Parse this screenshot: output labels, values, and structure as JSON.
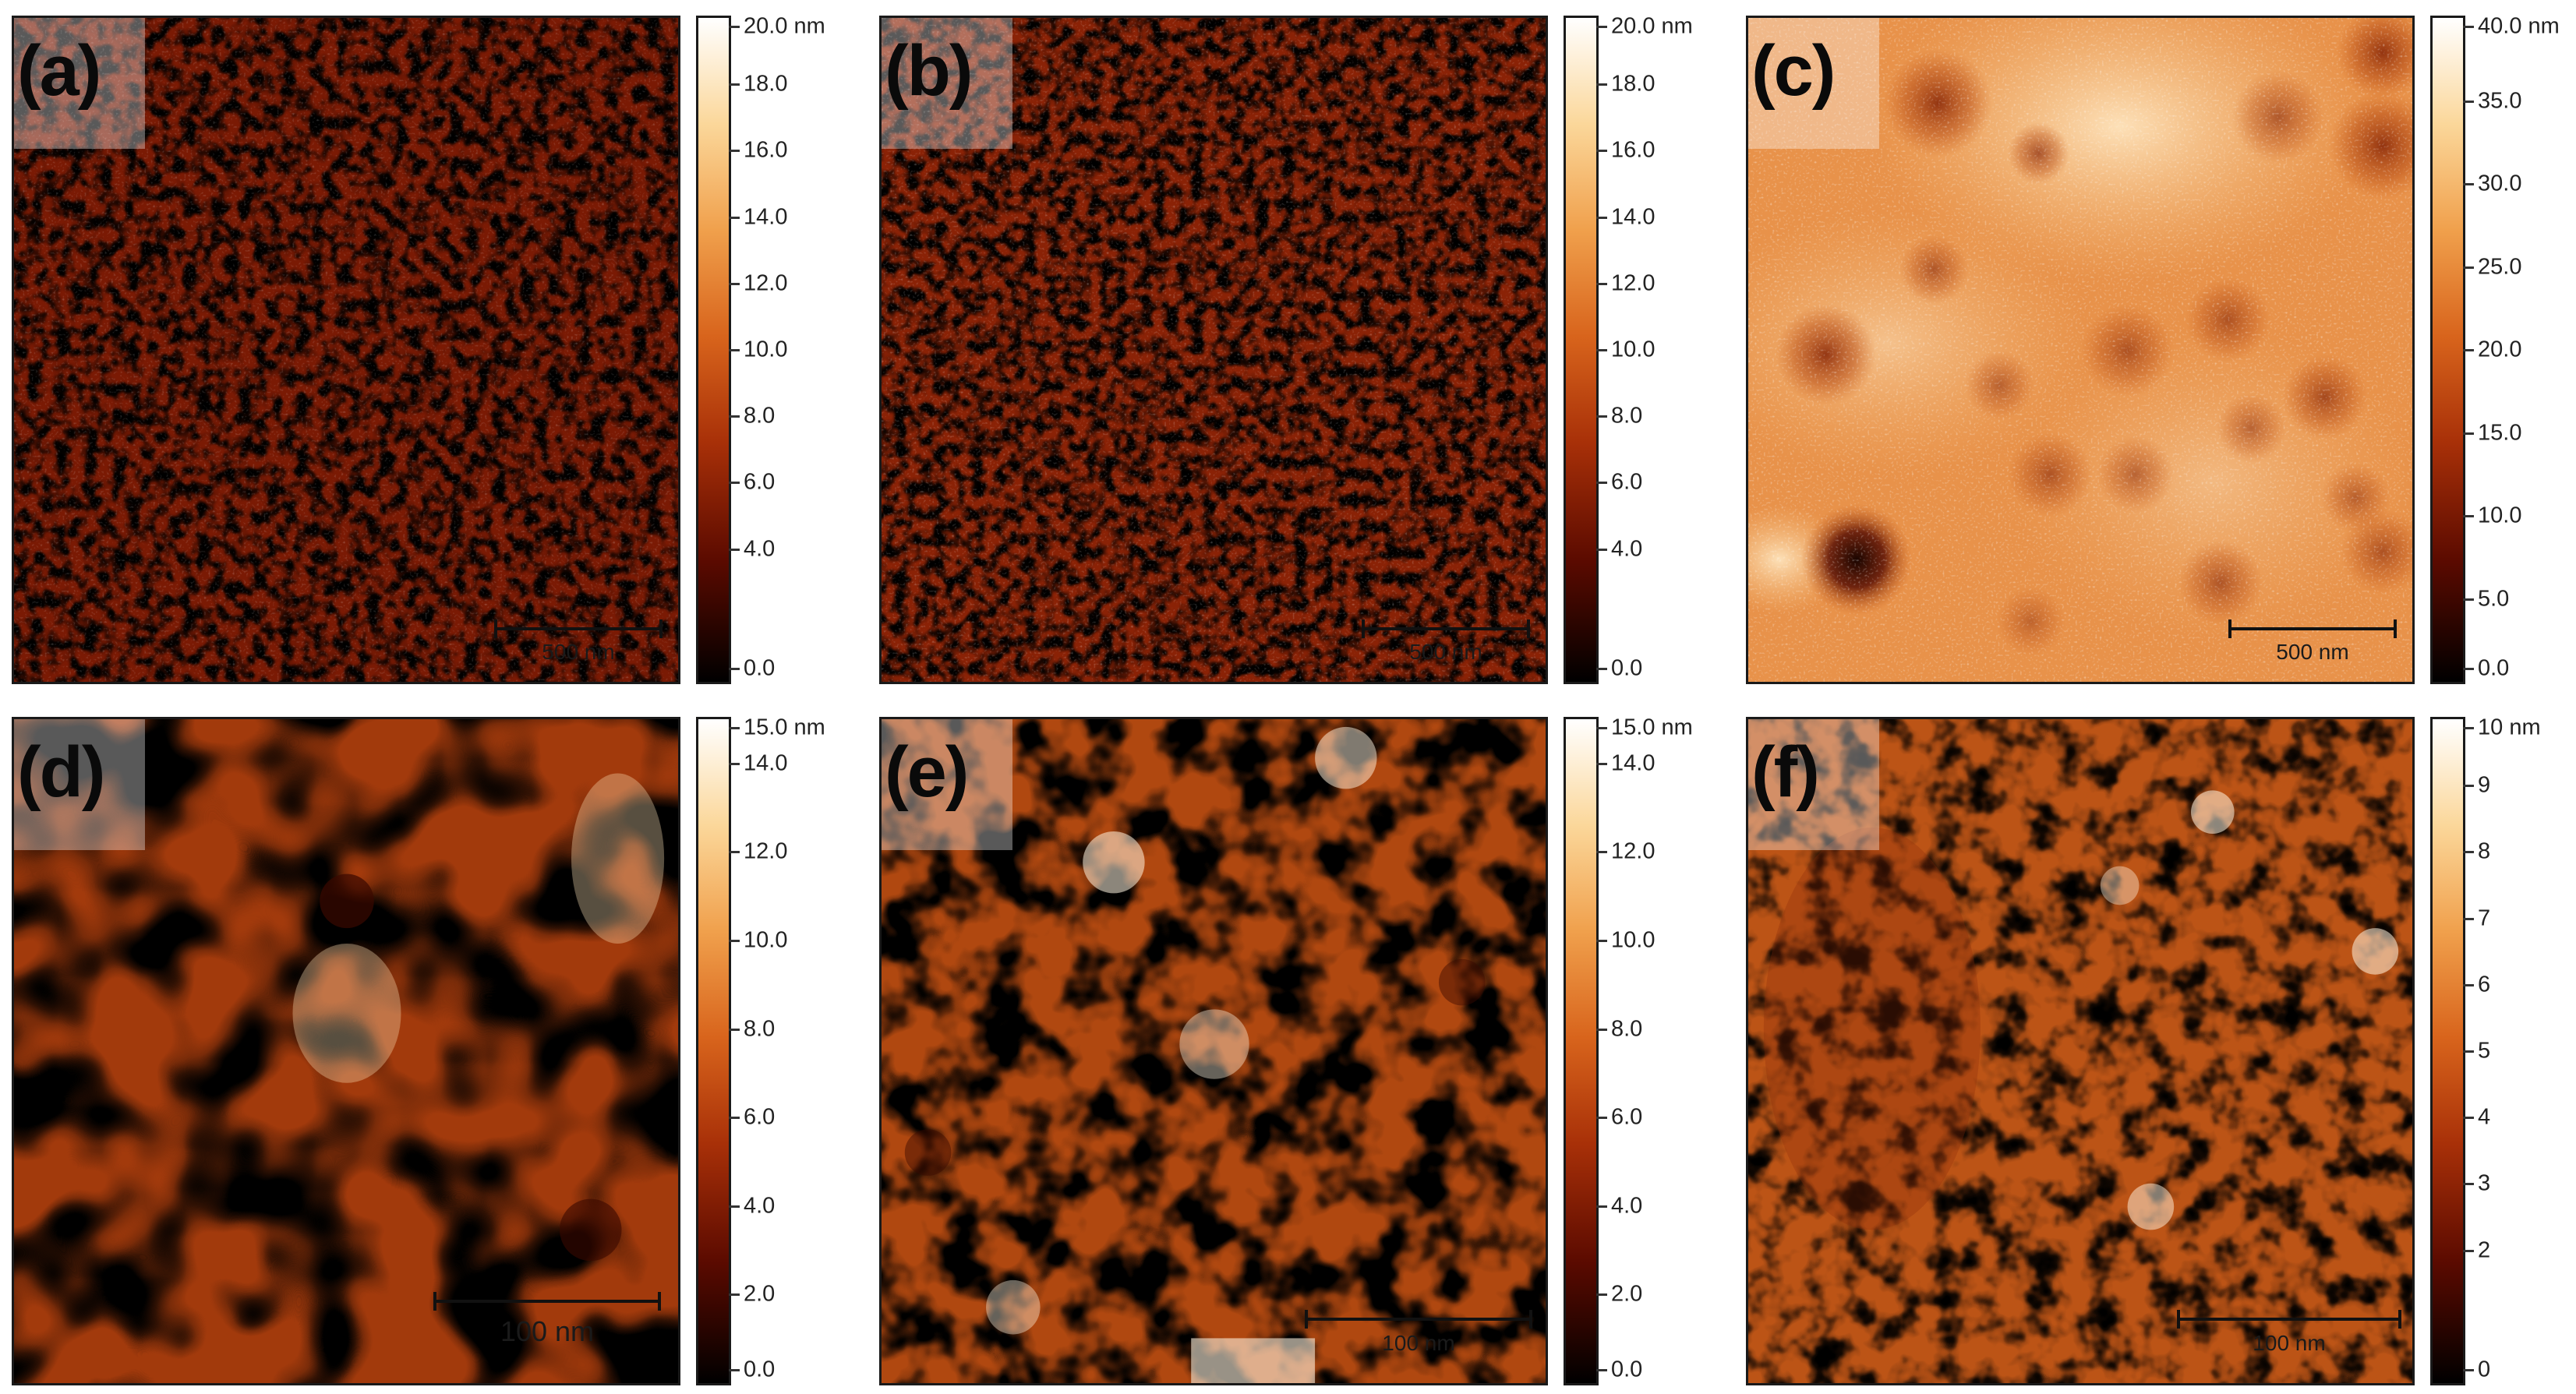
{
  "panels": [
    {
      "label": "(a)",
      "scale_bar": "500 nm",
      "colorbar_ticks": [
        "20.0 nm",
        "18.0",
        "16.0",
        "14.0",
        "12.0",
        "10.0",
        "8.0",
        "6.0",
        "4.0",
        "0.0"
      ],
      "colorbar_values": [
        20,
        18,
        16,
        14,
        12,
        10,
        8,
        6,
        4,
        0
      ],
      "colorbar_max": 20,
      "texture": "fine-grains"
    },
    {
      "label": "(b)",
      "scale_bar": "500 nm",
      "colorbar_ticks": [
        "20.0 nm",
        "18.0",
        "16.0",
        "14.0",
        "12.0",
        "10.0",
        "8.0",
        "6.0",
        "4.0",
        "0.0"
      ],
      "colorbar_values": [
        20,
        18,
        16,
        14,
        12,
        10,
        8,
        6,
        4,
        0
      ],
      "colorbar_max": 20,
      "texture": "fine-grains"
    },
    {
      "label": "(c)",
      "scale_bar": "500 nm",
      "colorbar_ticks": [
        "40.0 nm",
        "35.0",
        "30.0",
        "25.0",
        "20.0",
        "15.0",
        "10.0",
        "5.0",
        "0.0"
      ],
      "colorbar_values": [
        40,
        35,
        30,
        25,
        20,
        15,
        10,
        5,
        0
      ],
      "colorbar_max": 40,
      "texture": "smooth-with-pits"
    },
    {
      "label": "(d)",
      "scale_bar": "100 nm",
      "colorbar_ticks": [
        "15.0 nm",
        "14.0",
        "12.0",
        "10.0",
        "8.0",
        "6.0",
        "4.0",
        "2.0",
        "0.0"
      ],
      "colorbar_values": [
        15,
        14,
        12,
        10,
        8,
        6,
        4,
        2,
        0
      ],
      "colorbar_max": 15,
      "texture": "large-grains"
    },
    {
      "label": "(e)",
      "scale_bar": "100 nm",
      "colorbar_ticks": [
        "15.0 nm",
        "14.0",
        "12.0",
        "10.0",
        "8.0",
        "6.0",
        "4.0",
        "2.0",
        "0.0"
      ],
      "colorbar_values": [
        15,
        14,
        12,
        10,
        8,
        6,
        4,
        2,
        0
      ],
      "colorbar_max": 15,
      "texture": "medium-grains"
    },
    {
      "label": "(f)",
      "scale_bar": "100 nm",
      "colorbar_ticks": [
        "10 nm",
        "9",
        "8",
        "7",
        "6",
        "5",
        "4",
        "3",
        "2",
        "0"
      ],
      "colorbar_values": [
        10,
        9,
        8,
        7,
        6,
        5,
        4,
        3,
        2,
        0
      ],
      "colorbar_max": 10,
      "texture": "small-grains"
    }
  ],
  "colormap": [
    "#000000",
    "#5a0a00",
    "#a83008",
    "#d8641c",
    "#f0a04c",
    "#fbd79a",
    "#ffffff"
  ]
}
